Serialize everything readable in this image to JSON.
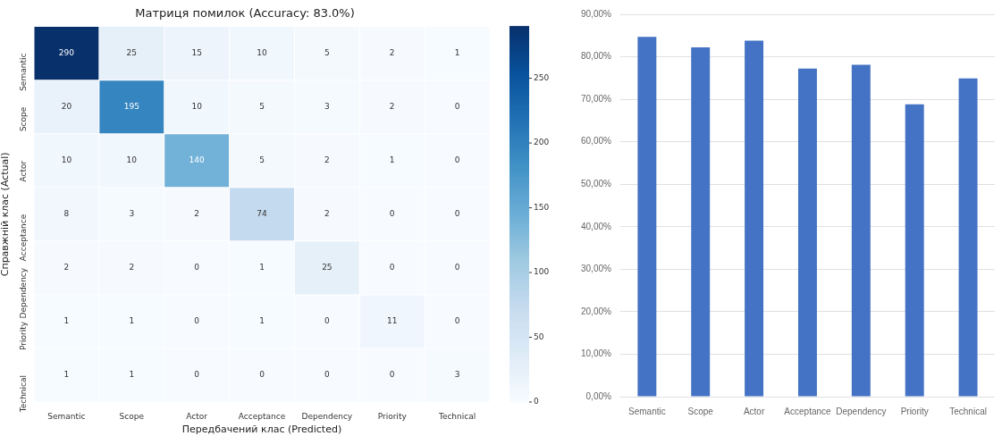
{
  "chart_data": [
    {
      "type": "heatmap",
      "title": "Матриця помилок (Accuracy: 83.0%)",
      "xlabel": "Передбачений клас (Predicted)",
      "ylabel": "Справжній клас (Actual)",
      "categories": [
        "Semantic",
        "Scope",
        "Actor",
        "Acceptance",
        "Dependency",
        "Priority",
        "Technical"
      ],
      "y_categories": [
        "Semantic",
        "Scope",
        "Actor",
        "Acceptance",
        "Dependency",
        "Priority",
        "Technical"
      ],
      "cells": [
        [
          290,
          25,
          15,
          10,
          5,
          2,
          1
        ],
        [
          20,
          195,
          10,
          5,
          3,
          2,
          0
        ],
        [
          10,
          10,
          140,
          5,
          2,
          1,
          0
        ],
        [
          8,
          3,
          2,
          74,
          2,
          0,
          0
        ],
        [
          2,
          2,
          0,
          1,
          25,
          0,
          0
        ],
        [
          1,
          1,
          0,
          1,
          0,
          11,
          0
        ],
        [
          1,
          1,
          0,
          0,
          0,
          0,
          3
        ]
      ],
      "clim": [
        0,
        290
      ],
      "cticks": [
        0,
        50,
        100,
        150,
        200,
        250
      ],
      "data_labels": true
    },
    {
      "type": "bar",
      "categories": [
        "Semantic",
        "Scope",
        "Actor",
        "Acceptance",
        "Dependency",
        "Priority",
        "Technical"
      ],
      "values": [
        84.7,
        82.2,
        83.8,
        77.2,
        78.1,
        68.8,
        74.9
      ],
      "color": "#4472c4",
      "ylim": [
        0,
        90
      ],
      "yticks": [
        {
          "value": 0,
          "label": "0,00%"
        },
        {
          "value": 10,
          "label": "10,00%"
        },
        {
          "value": 20,
          "label": "20,00%"
        },
        {
          "value": 30,
          "label": "30,00%"
        },
        {
          "value": 40,
          "label": "40,00%"
        },
        {
          "value": 50,
          "label": "50,00%"
        },
        {
          "value": 60,
          "label": "60,00%"
        },
        {
          "value": 70,
          "label": "70,00%"
        },
        {
          "value": 80,
          "label": "80,00%"
        },
        {
          "value": 90,
          "label": "90,00%"
        }
      ],
      "grid": "y"
    }
  ]
}
